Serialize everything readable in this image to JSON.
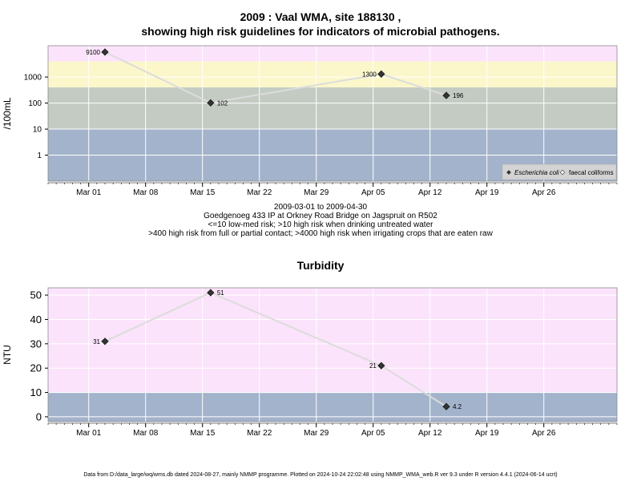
{
  "header": {
    "title_line1": "2009 : Vaal WMA, site 188130 ,",
    "title_line2": "showing high risk guidelines for indicators of microbial pathogens."
  },
  "subtitle": {
    "line1": "2009-03-01 to 2009-04-30",
    "line2": "Goedgenoeg 433 IP at Orkney Road Bridge on Jagspruit on R502",
    "line3": "<=10 low-med risk; >10 high risk when drinking untreated water",
    "line4": ">400 high risk from full or partial contact; >4000 high risk when irrigating crops that are eaten raw"
  },
  "footer": "Data from D:/data_large/wq/wms.db dated 2024-08-27, mainly NMMP programme. Plotted on 2024-10-24 22:02:48 using NMMP_WMA_web.R ver 9.3 under R version 4.4.1 (2024-06-14 ucrt)",
  "colors": {
    "band_low": "#a3b3cb",
    "band_mid": "#c3cbc3",
    "band_high": "#fbf7cb",
    "band_top": "#fbe3fb",
    "line": "#dcdcdc",
    "grid": "#ffffff"
  },
  "chart_data": [
    {
      "type": "line",
      "title": "",
      "ylabel": "/100mL",
      "yscale": "log",
      "ylim": [
        0.1,
        16000
      ],
      "yticks": [
        1,
        10,
        100,
        1000
      ],
      "ytick_labels": [
        "1",
        "10",
        "100",
        "1000"
      ],
      "xlim": [
        "2009-02-24",
        "2009-05-05"
      ],
      "xticks": [
        "2009-03-01",
        "2009-03-08",
        "2009-03-15",
        "2009-03-22",
        "2009-03-29",
        "2009-04-05",
        "2009-04-12",
        "2009-04-19",
        "2009-04-26"
      ],
      "xtick_labels": [
        "Mar 01",
        "Mar 08",
        "Mar 15",
        "Mar 22",
        "Mar 29",
        "Apr 05",
        "Apr 12",
        "Apr 19",
        "Apr 26"
      ],
      "bands": [
        {
          "from": 0.1,
          "to": 10,
          "color": "#a3b3cb"
        },
        {
          "from": 10,
          "to": 400,
          "color": "#c3cbc3"
        },
        {
          "from": 400,
          "to": 4000,
          "color": "#fbf7cb"
        },
        {
          "from": 4000,
          "to": 16000,
          "color": "#fbe3fb"
        }
      ],
      "series": [
        {
          "name": "Escherichia coli",
          "x": [
            "2009-03-03",
            "2009-03-16",
            "2009-04-06",
            "2009-04-14"
          ],
          "y": [
            9100,
            102,
            1300,
            196
          ],
          "labels": [
            "9100",
            "102",
            "1300",
            "196"
          ]
        }
      ],
      "legend": {
        "position": "bottom-right",
        "entries": [
          "Escherichia coli",
          "faecal coliforms"
        ]
      },
      "grid": true
    },
    {
      "type": "line",
      "title": "Turbidity",
      "ylabel": "NTU",
      "yscale": "linear",
      "ylim": [
        -2,
        53
      ],
      "yticks": [
        0,
        10,
        20,
        30,
        40,
        50
      ],
      "ytick_labels": [
        "0",
        "10",
        "20",
        "30",
        "40",
        "50"
      ],
      "xlim": [
        "2009-02-24",
        "2009-05-05"
      ],
      "xticks": [
        "2009-03-01",
        "2009-03-08",
        "2009-03-15",
        "2009-03-22",
        "2009-03-29",
        "2009-04-05",
        "2009-04-12",
        "2009-04-19",
        "2009-04-26"
      ],
      "xtick_labels": [
        "Mar 01",
        "Mar 08",
        "Mar 15",
        "Mar 22",
        "Mar 29",
        "Apr 05",
        "Apr 12",
        "Apr 19",
        "Apr 26"
      ],
      "bands": [
        {
          "from": -2,
          "to": 10,
          "color": "#a3b3cb"
        },
        {
          "from": 10,
          "to": 53,
          "color": "#fbe3fb"
        }
      ],
      "series": [
        {
          "x": [
            "2009-03-03",
            "2009-03-16",
            "2009-04-06",
            "2009-04-14"
          ],
          "y": [
            31,
            51,
            21,
            4.2
          ],
          "labels": [
            "31",
            "51",
            "21",
            "4.2"
          ]
        }
      ],
      "grid": true
    }
  ]
}
